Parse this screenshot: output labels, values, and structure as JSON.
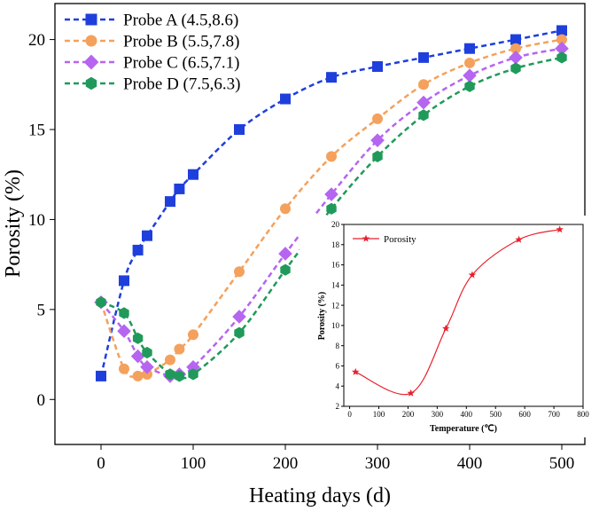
{
  "chart_data": [
    {
      "type": "line",
      "title": "",
      "xlabel": "Heating days (d)",
      "ylabel": "Porosity (%)",
      "xlim": [
        -50,
        525
      ],
      "ylim": [
        -2.5,
        22
      ],
      "xticks": [
        0,
        100,
        200,
        300,
        400,
        500
      ],
      "yticks": [
        0,
        5,
        10,
        15,
        20
      ],
      "legend_position": "top-left",
      "series": [
        {
          "name": "Probe A (4.5,8.6)",
          "color": "#1f3fdc",
          "marker": "square",
          "x": [
            0,
            25,
            40,
            50,
            75,
            85,
            100,
            150,
            200,
            250,
            300,
            350,
            400,
            450,
            500
          ],
          "y": [
            1.3,
            6.6,
            8.3,
            9.1,
            11.0,
            11.7,
            12.5,
            15.0,
            16.7,
            17.9,
            18.5,
            19.0,
            19.5,
            20.0,
            20.5
          ]
        },
        {
          "name": "Probe B (5.5,7.8)",
          "color": "#f4a15d",
          "marker": "circle",
          "x": [
            0,
            25,
            40,
            50,
            75,
            85,
            100,
            150,
            200,
            250,
            300,
            350,
            400,
            450,
            500
          ],
          "y": [
            5.4,
            1.7,
            1.3,
            1.4,
            2.2,
            2.8,
            3.6,
            7.1,
            10.6,
            13.5,
            15.6,
            17.5,
            18.7,
            19.5,
            20.0
          ]
        },
        {
          "name": "Probe C (6.5,7.1)",
          "color": "#b565f0",
          "marker": "diamond",
          "x": [
            0,
            25,
            40,
            50,
            75,
            85,
            100,
            150,
            200,
            250,
            300,
            350,
            400,
            450,
            500
          ],
          "y": [
            5.4,
            3.8,
            2.4,
            1.8,
            1.3,
            1.4,
            1.8,
            4.6,
            8.1,
            11.4,
            14.4,
            16.5,
            18.0,
            19.0,
            19.5
          ]
        },
        {
          "name": "Probe D (7.5,6.3)",
          "color": "#1f9a5a",
          "marker": "hexagon",
          "x": [
            0,
            25,
            40,
            50,
            75,
            85,
            100,
            150,
            200,
            250,
            300,
            350,
            400,
            450,
            500
          ],
          "y": [
            5.4,
            4.8,
            3.4,
            2.6,
            1.4,
            1.3,
            1.4,
            3.7,
            7.2,
            10.6,
            13.5,
            15.8,
            17.4,
            18.4,
            19.0
          ]
        }
      ]
    },
    {
      "type": "line",
      "title": "",
      "xlabel": "Temperature (℃)",
      "ylabel": "Porosity (%)",
      "xlim": [
        -20,
        800
      ],
      "ylim": [
        2,
        20
      ],
      "xticks": [
        0,
        100,
        200,
        300,
        400,
        500,
        600,
        700,
        800
      ],
      "yticks": [
        2,
        4,
        6,
        8,
        10,
        12,
        14,
        16,
        18,
        20
      ],
      "legend_position": "top-left",
      "series": [
        {
          "name": "Porosity",
          "color": "#e8212d",
          "marker": "star",
          "x": [
            20,
            210,
            330,
            420,
            580,
            720
          ],
          "y": [
            5.4,
            3.3,
            9.7,
            15.0,
            18.5,
            19.5
          ]
        }
      ]
    }
  ]
}
